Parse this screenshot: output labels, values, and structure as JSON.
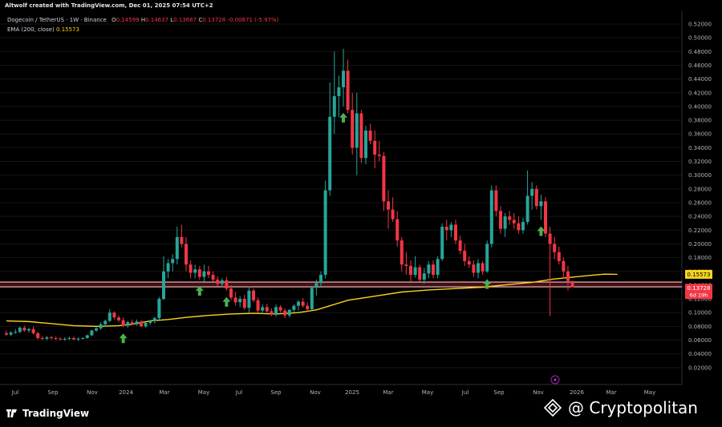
{
  "header": {
    "created_by": "Altwolf created with TradingView.com, Dec 01, 2025 07:54 UTC+2"
  },
  "legend": {
    "symbol": "Dogecoin / TetherUS · 1W · Binance",
    "open_label": "O",
    "open": "0.14599",
    "high_label": "H",
    "high": "0.14637",
    "low_label": "L",
    "low": "0.13667",
    "close_label": "C",
    "close": "0.13728",
    "change": "-0.00871 (-5.97%)",
    "ema_label": "EMA (200, close)",
    "ema_value": "0.15573"
  },
  "badges": {
    "ema": "0.15573",
    "price": "0.13728",
    "countdown": "6d 19h"
  },
  "footer": {
    "tradingview": "TradingView",
    "cryptopolitan": "@ Cryptopolitan"
  },
  "colors": {
    "up": "#26a69a",
    "down": "#f23645",
    "ema": "#f7d51d",
    "zone": "#f7c5c8",
    "arrow": "#4caf50",
    "background": "#000000"
  },
  "chart_data": {
    "type": "candlestick",
    "title": "Dogecoin / TetherUS · 1W · Binance",
    "ylim": [
      0.0,
      0.52
    ],
    "y_ticks": [
      "0.52000",
      "0.50000",
      "0.48000",
      "0.46000",
      "0.44000",
      "0.42000",
      "0.40000",
      "0.38000",
      "0.36000",
      "0.34000",
      "0.32000",
      "0.30000",
      "0.28000",
      "0.26000",
      "0.24000",
      "0.22000",
      "0.20000",
      "0.18000",
      "0.16000",
      "0.14000",
      "0.12000",
      "0.10000",
      "0.08000",
      "0.06000",
      "0.04000",
      "0.02000"
    ],
    "x_labels": [
      "Jul",
      "Sep",
      "Nov",
      "2024",
      "Mar",
      "May",
      "Jul",
      "Sep",
      "Nov",
      "2025",
      "Mar",
      "May",
      "Jul",
      "Sep",
      "Nov",
      "2026",
      "Mar",
      "May"
    ],
    "support_zone": [
      0.1375,
      0.1445
    ],
    "arrow_weeks": [
      26,
      43,
      49,
      75,
      107,
      119
    ],
    "weeks": [
      {
        "o": 0.07,
        "h": 0.074,
        "l": 0.066,
        "c": 0.068
      },
      {
        "o": 0.068,
        "h": 0.073,
        "l": 0.066,
        "c": 0.071
      },
      {
        "o": 0.071,
        "h": 0.076,
        "l": 0.069,
        "c": 0.072
      },
      {
        "o": 0.072,
        "h": 0.08,
        "l": 0.07,
        "c": 0.078
      },
      {
        "o": 0.078,
        "h": 0.081,
        "l": 0.072,
        "c": 0.074
      },
      {
        "o": 0.074,
        "h": 0.078,
        "l": 0.071,
        "c": 0.076
      },
      {
        "o": 0.076,
        "h": 0.08,
        "l": 0.068,
        "c": 0.07
      },
      {
        "o": 0.07,
        "h": 0.072,
        "l": 0.061,
        "c": 0.063
      },
      {
        "o": 0.063,
        "h": 0.066,
        "l": 0.06,
        "c": 0.062
      },
      {
        "o": 0.062,
        "h": 0.066,
        "l": 0.06,
        "c": 0.064
      },
      {
        "o": 0.064,
        "h": 0.066,
        "l": 0.061,
        "c": 0.063
      },
      {
        "o": 0.063,
        "h": 0.065,
        "l": 0.06,
        "c": 0.062
      },
      {
        "o": 0.062,
        "h": 0.064,
        "l": 0.06,
        "c": 0.061
      },
      {
        "o": 0.061,
        "h": 0.064,
        "l": 0.059,
        "c": 0.062
      },
      {
        "o": 0.062,
        "h": 0.065,
        "l": 0.06,
        "c": 0.063
      },
      {
        "o": 0.063,
        "h": 0.065,
        "l": 0.06,
        "c": 0.061
      },
      {
        "o": 0.061,
        "h": 0.064,
        "l": 0.059,
        "c": 0.062
      },
      {
        "o": 0.062,
        "h": 0.064,
        "l": 0.061,
        "c": 0.063
      },
      {
        "o": 0.063,
        "h": 0.068,
        "l": 0.062,
        "c": 0.067
      },
      {
        "o": 0.067,
        "h": 0.075,
        "l": 0.066,
        "c": 0.074
      },
      {
        "o": 0.074,
        "h": 0.079,
        "l": 0.072,
        "c": 0.077
      },
      {
        "o": 0.077,
        "h": 0.086,
        "l": 0.075,
        "c": 0.083
      },
      {
        "o": 0.083,
        "h": 0.09,
        "l": 0.08,
        "c": 0.088
      },
      {
        "o": 0.088,
        "h": 0.105,
        "l": 0.086,
        "c": 0.1
      },
      {
        "o": 0.1,
        "h": 0.102,
        "l": 0.09,
        "c": 0.093
      },
      {
        "o": 0.093,
        "h": 0.096,
        "l": 0.086,
        "c": 0.089
      },
      {
        "o": 0.089,
        "h": 0.093,
        "l": 0.079,
        "c": 0.081
      },
      {
        "o": 0.081,
        "h": 0.088,
        "l": 0.078,
        "c": 0.086
      },
      {
        "o": 0.086,
        "h": 0.09,
        "l": 0.082,
        "c": 0.083
      },
      {
        "o": 0.083,
        "h": 0.09,
        "l": 0.081,
        "c": 0.087
      },
      {
        "o": 0.087,
        "h": 0.089,
        "l": 0.079,
        "c": 0.08
      },
      {
        "o": 0.08,
        "h": 0.086,
        "l": 0.078,
        "c": 0.085
      },
      {
        "o": 0.085,
        "h": 0.09,
        "l": 0.082,
        "c": 0.088
      },
      {
        "o": 0.088,
        "h": 0.094,
        "l": 0.084,
        "c": 0.092
      },
      {
        "o": 0.092,
        "h": 0.123,
        "l": 0.09,
        "c": 0.12
      },
      {
        "o": 0.12,
        "h": 0.182,
        "l": 0.118,
        "c": 0.16
      },
      {
        "o": 0.16,
        "h": 0.178,
        "l": 0.15,
        "c": 0.172
      },
      {
        "o": 0.172,
        "h": 0.185,
        "l": 0.16,
        "c": 0.178
      },
      {
        "o": 0.178,
        "h": 0.225,
        "l": 0.17,
        "c": 0.21
      },
      {
        "o": 0.21,
        "h": 0.228,
        "l": 0.195,
        "c": 0.2
      },
      {
        "o": 0.2,
        "h": 0.21,
        "l": 0.16,
        "c": 0.17
      },
      {
        "o": 0.17,
        "h": 0.176,
        "l": 0.15,
        "c": 0.158
      },
      {
        "o": 0.158,
        "h": 0.17,
        "l": 0.15,
        "c": 0.163
      },
      {
        "o": 0.163,
        "h": 0.168,
        "l": 0.148,
        "c": 0.152
      },
      {
        "o": 0.152,
        "h": 0.17,
        "l": 0.145,
        "c": 0.16
      },
      {
        "o": 0.16,
        "h": 0.168,
        "l": 0.15,
        "c": 0.155
      },
      {
        "o": 0.155,
        "h": 0.16,
        "l": 0.145,
        "c": 0.148
      },
      {
        "o": 0.148,
        "h": 0.153,
        "l": 0.138,
        "c": 0.142
      },
      {
        "o": 0.142,
        "h": 0.15,
        "l": 0.137,
        "c": 0.147
      },
      {
        "o": 0.147,
        "h": 0.152,
        "l": 0.132,
        "c": 0.135
      },
      {
        "o": 0.135,
        "h": 0.14,
        "l": 0.118,
        "c": 0.122
      },
      {
        "o": 0.122,
        "h": 0.13,
        "l": 0.11,
        "c": 0.115
      },
      {
        "o": 0.115,
        "h": 0.124,
        "l": 0.108,
        "c": 0.12
      },
      {
        "o": 0.12,
        "h": 0.126,
        "l": 0.104,
        "c": 0.107
      },
      {
        "o": 0.107,
        "h": 0.138,
        "l": 0.1,
        "c": 0.132
      },
      {
        "o": 0.132,
        "h": 0.135,
        "l": 0.115,
        "c": 0.118
      },
      {
        "o": 0.118,
        "h": 0.122,
        "l": 0.1,
        "c": 0.103
      },
      {
        "o": 0.103,
        "h": 0.112,
        "l": 0.098,
        "c": 0.108
      },
      {
        "o": 0.108,
        "h": 0.113,
        "l": 0.1,
        "c": 0.102
      },
      {
        "o": 0.102,
        "h": 0.106,
        "l": 0.095,
        "c": 0.098
      },
      {
        "o": 0.098,
        "h": 0.112,
        "l": 0.094,
        "c": 0.108
      },
      {
        "o": 0.108,
        "h": 0.111,
        "l": 0.1,
        "c": 0.103
      },
      {
        "o": 0.103,
        "h": 0.106,
        "l": 0.092,
        "c": 0.096
      },
      {
        "o": 0.096,
        "h": 0.105,
        "l": 0.093,
        "c": 0.104
      },
      {
        "o": 0.104,
        "h": 0.112,
        "l": 0.101,
        "c": 0.11
      },
      {
        "o": 0.11,
        "h": 0.118,
        "l": 0.103,
        "c": 0.116
      },
      {
        "o": 0.116,
        "h": 0.121,
        "l": 0.107,
        "c": 0.11
      },
      {
        "o": 0.11,
        "h": 0.115,
        "l": 0.102,
        "c": 0.105
      },
      {
        "o": 0.105,
        "h": 0.139,
        "l": 0.103,
        "c": 0.136
      },
      {
        "o": 0.136,
        "h": 0.148,
        "l": 0.125,
        "c": 0.143
      },
      {
        "o": 0.143,
        "h": 0.16,
        "l": 0.138,
        "c": 0.155
      },
      {
        "o": 0.155,
        "h": 0.292,
        "l": 0.15,
        "c": 0.278
      },
      {
        "o": 0.278,
        "h": 0.435,
        "l": 0.27,
        "c": 0.385
      },
      {
        "o": 0.385,
        "h": 0.48,
        "l": 0.36,
        "c": 0.415
      },
      {
        "o": 0.415,
        "h": 0.445,
        "l": 0.385,
        "c": 0.428
      },
      {
        "o": 0.428,
        "h": 0.484,
        "l": 0.4,
        "c": 0.452
      },
      {
        "o": 0.452,
        "h": 0.468,
        "l": 0.39,
        "c": 0.395
      },
      {
        "o": 0.395,
        "h": 0.42,
        "l": 0.33,
        "c": 0.34
      },
      {
        "o": 0.34,
        "h": 0.42,
        "l": 0.3,
        "c": 0.39
      },
      {
        "o": 0.39,
        "h": 0.395,
        "l": 0.318,
        "c": 0.325
      },
      {
        "o": 0.325,
        "h": 0.372,
        "l": 0.316,
        "c": 0.365
      },
      {
        "o": 0.365,
        "h": 0.375,
        "l": 0.345,
        "c": 0.35
      },
      {
        "o": 0.35,
        "h": 0.365,
        "l": 0.31,
        "c": 0.33
      },
      {
        "o": 0.33,
        "h": 0.35,
        "l": 0.32,
        "c": 0.328
      },
      {
        "o": 0.328,
        "h": 0.334,
        "l": 0.248,
        "c": 0.262
      },
      {
        "o": 0.262,
        "h": 0.278,
        "l": 0.222,
        "c": 0.25
      },
      {
        "o": 0.25,
        "h": 0.268,
        "l": 0.232,
        "c": 0.236
      },
      {
        "o": 0.236,
        "h": 0.248,
        "l": 0.196,
        "c": 0.205
      },
      {
        "o": 0.205,
        "h": 0.21,
        "l": 0.16,
        "c": 0.17
      },
      {
        "o": 0.17,
        "h": 0.188,
        "l": 0.155,
        "c": 0.168
      },
      {
        "o": 0.168,
        "h": 0.176,
        "l": 0.145,
        "c": 0.155
      },
      {
        "o": 0.155,
        "h": 0.182,
        "l": 0.151,
        "c": 0.166
      },
      {
        "o": 0.166,
        "h": 0.17,
        "l": 0.145,
        "c": 0.148
      },
      {
        "o": 0.148,
        "h": 0.165,
        "l": 0.142,
        "c": 0.157
      },
      {
        "o": 0.157,
        "h": 0.175,
        "l": 0.15,
        "c": 0.17
      },
      {
        "o": 0.17,
        "h": 0.176,
        "l": 0.15,
        "c": 0.155
      },
      {
        "o": 0.155,
        "h": 0.182,
        "l": 0.15,
        "c": 0.178
      },
      {
        "o": 0.178,
        "h": 0.23,
        "l": 0.175,
        "c": 0.225
      },
      {
        "o": 0.225,
        "h": 0.235,
        "l": 0.205,
        "c": 0.22
      },
      {
        "o": 0.22,
        "h": 0.232,
        "l": 0.21,
        "c": 0.228
      },
      {
        "o": 0.228,
        "h": 0.235,
        "l": 0.2,
        "c": 0.205
      },
      {
        "o": 0.205,
        "h": 0.212,
        "l": 0.185,
        "c": 0.19
      },
      {
        "o": 0.19,
        "h": 0.2,
        "l": 0.168,
        "c": 0.175
      },
      {
        "o": 0.175,
        "h": 0.182,
        "l": 0.165,
        "c": 0.17
      },
      {
        "o": 0.17,
        "h": 0.176,
        "l": 0.152,
        "c": 0.158
      },
      {
        "o": 0.158,
        "h": 0.178,
        "l": 0.15,
        "c": 0.172
      },
      {
        "o": 0.172,
        "h": 0.175,
        "l": 0.155,
        "c": 0.16
      },
      {
        "o": 0.16,
        "h": 0.205,
        "l": 0.158,
        "c": 0.2
      },
      {
        "o": 0.2,
        "h": 0.285,
        "l": 0.195,
        "c": 0.278
      },
      {
        "o": 0.278,
        "h": 0.285,
        "l": 0.24,
        "c": 0.248
      },
      {
        "o": 0.248,
        "h": 0.255,
        "l": 0.215,
        "c": 0.222
      },
      {
        "o": 0.222,
        "h": 0.245,
        "l": 0.21,
        "c": 0.24
      },
      {
        "o": 0.24,
        "h": 0.248,
        "l": 0.228,
        "c": 0.235
      },
      {
        "o": 0.235,
        "h": 0.245,
        "l": 0.222,
        "c": 0.23
      },
      {
        "o": 0.23,
        "h": 0.24,
        "l": 0.215,
        "c": 0.22
      },
      {
        "o": 0.22,
        "h": 0.238,
        "l": 0.215,
        "c": 0.232
      },
      {
        "o": 0.232,
        "h": 0.307,
        "l": 0.228,
        "c": 0.27
      },
      {
        "o": 0.27,
        "h": 0.29,
        "l": 0.25,
        "c": 0.28
      },
      {
        "o": 0.28,
        "h": 0.285,
        "l": 0.25,
        "c": 0.255
      },
      {
        "o": 0.255,
        "h": 0.272,
        "l": 0.235,
        "c": 0.262
      },
      {
        "o": 0.262,
        "h": 0.268,
        "l": 0.21,
        "c": 0.215
      },
      {
        "o": 0.215,
        "h": 0.225,
        "l": 0.095,
        "c": 0.2
      },
      {
        "o": 0.2,
        "h": 0.21,
        "l": 0.178,
        "c": 0.188
      },
      {
        "o": 0.188,
        "h": 0.196,
        "l": 0.17,
        "c": 0.175
      },
      {
        "o": 0.175,
        "h": 0.18,
        "l": 0.15,
        "c": 0.16
      },
      {
        "o": 0.16,
        "h": 0.168,
        "l": 0.132,
        "c": 0.146
      },
      {
        "o": 0.146,
        "h": 0.146,
        "l": 0.137,
        "c": 0.137
      }
    ],
    "ema200": [
      [
        0,
        0.088
      ],
      [
        5,
        0.087
      ],
      [
        10,
        0.084
      ],
      [
        15,
        0.081
      ],
      [
        20,
        0.08
      ],
      [
        25,
        0.081
      ],
      [
        28,
        0.083
      ],
      [
        32,
        0.088
      ],
      [
        36,
        0.09
      ],
      [
        40,
        0.093
      ],
      [
        45,
        0.096
      ],
      [
        50,
        0.098
      ],
      [
        55,
        0.099
      ],
      [
        60,
        0.098
      ],
      [
        65,
        0.1
      ],
      [
        69,
        0.104
      ],
      [
        72,
        0.11
      ],
      [
        76,
        0.118
      ],
      [
        82,
        0.124
      ],
      [
        88,
        0.13
      ],
      [
        94,
        0.133
      ],
      [
        100,
        0.135
      ],
      [
        106,
        0.137
      ],
      [
        112,
        0.141
      ],
      [
        117,
        0.144
      ],
      [
        122,
        0.149
      ],
      [
        128,
        0.153
      ],
      [
        133,
        0.156
      ],
      [
        136,
        0.15573
      ]
    ]
  }
}
